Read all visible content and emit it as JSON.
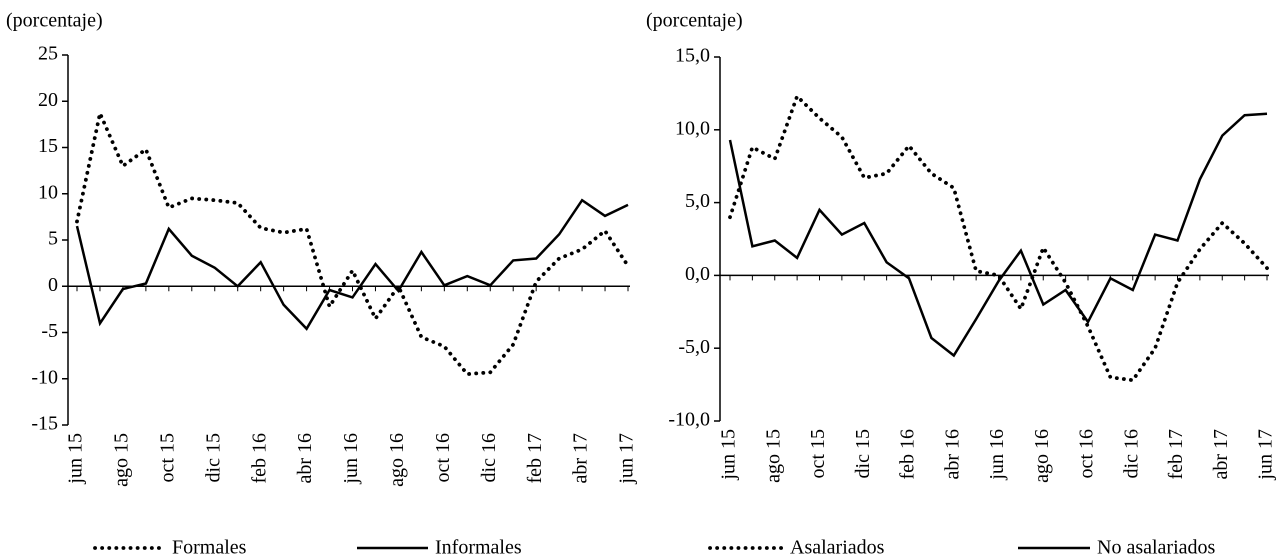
{
  "chart_data": [
    {
      "type": "line",
      "y_label": "(porcentaje)",
      "categories": [
        "jun 15",
        null,
        "ago 15",
        null,
        "oct 15",
        null,
        "dic 15",
        null,
        "feb 16",
        null,
        "abr 16",
        null,
        "jun 16",
        null,
        "ago 16",
        null,
        "oct 16",
        null,
        "dic 16",
        null,
        "feb 17",
        null,
        "abr 17",
        null,
        "jun 17"
      ],
      "series": [
        {
          "name": "Formales",
          "color": "#000000",
          "style": "dotted",
          "values": [
            7,
            18.7,
            13,
            14.8,
            8.5,
            9.5,
            9.3,
            9,
            6.3,
            5.8,
            6.2,
            -2.2,
            1.7,
            -3.5,
            0,
            -5.5,
            -6.5,
            -9.5,
            -9.3,
            -6.3,
            0.5,
            3,
            4,
            6,
            2.2
          ]
        },
        {
          "name": "Informales",
          "color": "#000000",
          "style": "solid",
          "values": [
            6.5,
            -4,
            -0.3,
            0.3,
            6.2,
            3.3,
            2,
            0,
            2.6,
            -2,
            -4.6,
            -0.4,
            -1.2,
            2.4,
            -0.5,
            3.7,
            0.1,
            1.1,
            0.1,
            2.8,
            3,
            5.6,
            9.3,
            7.6,
            8.8
          ]
        }
      ],
      "ylim": [
        -15,
        25
      ],
      "yticks": [
        -15,
        -10,
        -5,
        0,
        5,
        10,
        15,
        20,
        25
      ]
    },
    {
      "type": "line",
      "y_label": "(porcentaje)",
      "categories": [
        "jun 15",
        null,
        "ago 15",
        null,
        "oct 15",
        null,
        "dic 15",
        null,
        "feb 16",
        null,
        "abr 16",
        null,
        "jun 16",
        null,
        "ago 16",
        null,
        "oct 16",
        null,
        "dic 16",
        null,
        "feb 17",
        null,
        "abr 17",
        null,
        "jun 17"
      ],
      "series": [
        {
          "name": "Asalariados",
          "color": "#000000",
          "style": "dotted",
          "values": [
            4,
            8.8,
            8,
            12.3,
            10.8,
            9.5,
            6.7,
            7,
            8.9,
            7,
            6,
            0.3,
            0,
            -2.3,
            1.9,
            -0.5,
            -3.5,
            -7,
            -7.2,
            -5,
            -0.5,
            1.8,
            3.6,
            2.2,
            0.5
          ]
        },
        {
          "name": "No asalariados",
          "color": "#000000",
          "style": "solid",
          "values": [
            9.3,
            2,
            2.4,
            1.2,
            4.5,
            2.8,
            3.6,
            0.9,
            -0.2,
            -4.3,
            -5.5,
            -3,
            -0.4,
            1.7,
            -2,
            -1,
            -3.2,
            -0.2,
            -1,
            2.8,
            2.4,
            6.6,
            9.6,
            11,
            11.1
          ]
        }
      ],
      "ylim": [
        -10,
        15
      ],
      "yticks": [
        {
          "value": -10,
          "label": "-10,0"
        },
        {
          "value": -5,
          "label": "-5,0"
        },
        {
          "value": 0,
          "label": "0,0"
        },
        {
          "value": 5,
          "label": "5,0"
        },
        {
          "value": 10,
          "label": "10,0"
        },
        {
          "value": 15,
          "label": "15,0"
        }
      ]
    }
  ]
}
